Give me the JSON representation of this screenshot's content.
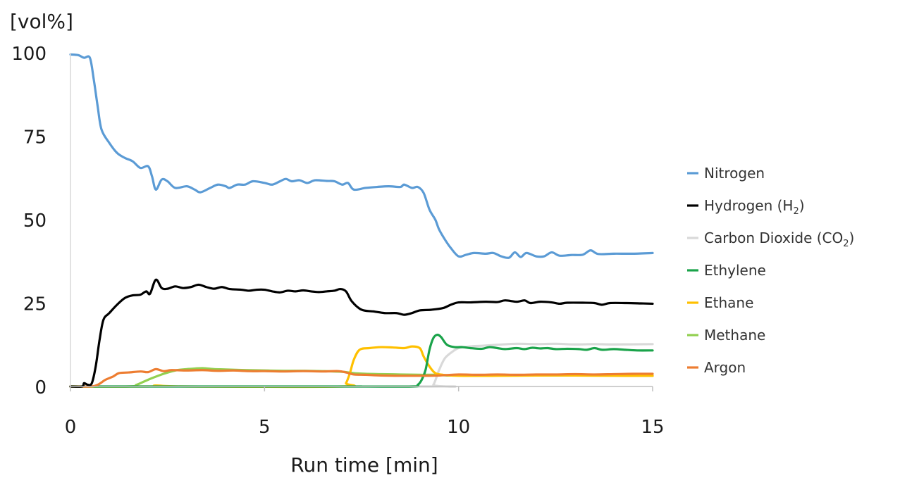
{
  "chart_data": {
    "type": "line",
    "ylabel": "[vol%]",
    "xlabel": "Run time  [min]",
    "xlim": [
      0,
      15
    ],
    "ylim": [
      0,
      100
    ],
    "xticks": [
      "0",
      "5",
      "10",
      "15"
    ],
    "yticks": [
      "0",
      "25",
      "50",
      "75",
      "100"
    ],
    "grid": false,
    "legend_position": "right",
    "series": [
      {
        "name": "Nitrogen",
        "color": "#5b9bd5",
        "points": [
          [
            0,
            99.5
          ],
          [
            0.2,
            99.3
          ],
          [
            0.35,
            98.5
          ],
          [
            0.5,
            98.5
          ],
          [
            0.6,
            92
          ],
          [
            0.7,
            84
          ],
          [
            0.8,
            77
          ],
          [
            1.0,
            73
          ],
          [
            1.2,
            70
          ],
          [
            1.4,
            68.5
          ],
          [
            1.6,
            67.5
          ],
          [
            1.8,
            65.5
          ],
          [
            2.0,
            66
          ],
          [
            2.1,
            63
          ],
          [
            2.2,
            59
          ],
          [
            2.35,
            62
          ],
          [
            2.5,
            61.5
          ],
          [
            2.7,
            59.5
          ],
          [
            3.0,
            60
          ],
          [
            3.2,
            59
          ],
          [
            3.35,
            58.2
          ],
          [
            3.6,
            59.5
          ],
          [
            3.8,
            60.5
          ],
          [
            4.0,
            60
          ],
          [
            4.1,
            59.5
          ],
          [
            4.3,
            60.5
          ],
          [
            4.5,
            60.5
          ],
          [
            4.7,
            61.5
          ],
          [
            5.0,
            61
          ],
          [
            5.2,
            60.5
          ],
          [
            5.4,
            61.5
          ],
          [
            5.55,
            62.2
          ],
          [
            5.7,
            61.5
          ],
          [
            5.9,
            61.8
          ],
          [
            6.1,
            61
          ],
          [
            6.3,
            61.8
          ],
          [
            6.6,
            61.6
          ],
          [
            6.8,
            61.5
          ],
          [
            7.0,
            60.5
          ],
          [
            7.15,
            61
          ],
          [
            7.3,
            59
          ],
          [
            7.6,
            59.5
          ],
          [
            7.9,
            59.8
          ],
          [
            8.2,
            60
          ],
          [
            8.5,
            59.8
          ],
          [
            8.6,
            60.5
          ],
          [
            8.8,
            59.5
          ],
          [
            8.95,
            59.8
          ],
          [
            9.1,
            58
          ],
          [
            9.25,
            53
          ],
          [
            9.4,
            50
          ],
          [
            9.5,
            47
          ],
          [
            9.65,
            44
          ],
          [
            9.8,
            41.5
          ],
          [
            10.0,
            39
          ],
          [
            10.2,
            39.5
          ],
          [
            10.4,
            40
          ],
          [
            10.7,
            39.8
          ],
          [
            10.9,
            40
          ],
          [
            11.1,
            39
          ],
          [
            11.3,
            38.6
          ],
          [
            11.45,
            40.2
          ],
          [
            11.6,
            38.8
          ],
          [
            11.75,
            40
          ],
          [
            12.0,
            39
          ],
          [
            12.2,
            39
          ],
          [
            12.4,
            40.2
          ],
          [
            12.6,
            39.2
          ],
          [
            12.9,
            39.4
          ],
          [
            13.2,
            39.5
          ],
          [
            13.4,
            40.8
          ],
          [
            13.6,
            39.7
          ],
          [
            14.0,
            39.8
          ],
          [
            14.5,
            39.8
          ],
          [
            15.0,
            40
          ]
        ]
      },
      {
        "name": "Hydrogen (H",
        "name_sub": "2",
        "name_suffix": ")",
        "color": "#000000",
        "points": [
          [
            0,
            0
          ],
          [
            0.3,
            0
          ],
          [
            0.35,
            1
          ],
          [
            0.45,
            0.5
          ],
          [
            0.55,
            1
          ],
          [
            0.65,
            6
          ],
          [
            0.75,
            14
          ],
          [
            0.85,
            20
          ],
          [
            1.0,
            22
          ],
          [
            1.2,
            24.5
          ],
          [
            1.4,
            26.5
          ],
          [
            1.6,
            27.3
          ],
          [
            1.8,
            27.5
          ],
          [
            1.95,
            28.5
          ],
          [
            2.05,
            27.8
          ],
          [
            2.2,
            32
          ],
          [
            2.35,
            29.5
          ],
          [
            2.5,
            29.3
          ],
          [
            2.7,
            30
          ],
          [
            2.9,
            29.5
          ],
          [
            3.1,
            29.8
          ],
          [
            3.3,
            30.5
          ],
          [
            3.5,
            29.8
          ],
          [
            3.7,
            29.3
          ],
          [
            3.9,
            29.8
          ],
          [
            4.1,
            29.2
          ],
          [
            4.4,
            29
          ],
          [
            4.6,
            28.7
          ],
          [
            4.8,
            29
          ],
          [
            5.0,
            29
          ],
          [
            5.2,
            28.5
          ],
          [
            5.4,
            28.2
          ],
          [
            5.6,
            28.7
          ],
          [
            5.8,
            28.5
          ],
          [
            6.0,
            28.8
          ],
          [
            6.2,
            28.5
          ],
          [
            6.4,
            28.3
          ],
          [
            6.6,
            28.5
          ],
          [
            6.8,
            28.7
          ],
          [
            6.95,
            29.2
          ],
          [
            7.1,
            28.5
          ],
          [
            7.25,
            25.5
          ],
          [
            7.5,
            23
          ],
          [
            7.8,
            22.5
          ],
          [
            8.1,
            22
          ],
          [
            8.4,
            22
          ],
          [
            8.6,
            21.5
          ],
          [
            8.8,
            22
          ],
          [
            9.0,
            22.8
          ],
          [
            9.3,
            23
          ],
          [
            9.6,
            23.5
          ],
          [
            9.8,
            24.5
          ],
          [
            10.0,
            25.2
          ],
          [
            10.3,
            25.2
          ],
          [
            10.7,
            25.4
          ],
          [
            11.0,
            25.3
          ],
          [
            11.2,
            25.8
          ],
          [
            11.5,
            25.4
          ],
          [
            11.7,
            25.8
          ],
          [
            11.85,
            25
          ],
          [
            12.1,
            25.4
          ],
          [
            12.4,
            25.2
          ],
          [
            12.6,
            24.8
          ],
          [
            12.8,
            25.1
          ],
          [
            13.2,
            25.1
          ],
          [
            13.5,
            25
          ],
          [
            13.7,
            24.5
          ],
          [
            13.9,
            25
          ],
          [
            14.3,
            25
          ],
          [
            14.7,
            24.9
          ],
          [
            15.0,
            24.8
          ]
        ]
      },
      {
        "name": "Carbon Dioxide (CO",
        "name_sub": "2",
        "name_suffix": ")",
        "color": "#d9d9d9",
        "points": [
          [
            0,
            0
          ],
          [
            9.2,
            0
          ],
          [
            9.35,
            0.5
          ],
          [
            9.5,
            5
          ],
          [
            9.65,
            8.5
          ],
          [
            9.85,
            10.5
          ],
          [
            10.0,
            11.5
          ],
          [
            10.3,
            12
          ],
          [
            10.6,
            12.2
          ],
          [
            11.0,
            12.5
          ],
          [
            11.5,
            12.8
          ],
          [
            12.0,
            12.7
          ],
          [
            12.5,
            12.8
          ],
          [
            13.0,
            12.6
          ],
          [
            13.5,
            12.7
          ],
          [
            14.0,
            12.6
          ],
          [
            15.0,
            12.7
          ]
        ]
      },
      {
        "name": "Ethylene",
        "color": "#1aa34a",
        "points": [
          [
            0,
            0
          ],
          [
            6.95,
            0
          ],
          [
            7.1,
            0
          ],
          [
            7.25,
            0
          ],
          [
            8.8,
            0
          ],
          [
            8.95,
            0.5
          ],
          [
            9.05,
            2
          ],
          [
            9.15,
            5
          ],
          [
            9.25,
            11
          ],
          [
            9.35,
            14.5
          ],
          [
            9.45,
            15.5
          ],
          [
            9.55,
            14.8
          ],
          [
            9.7,
            12.5
          ],
          [
            9.9,
            11.8
          ],
          [
            10.1,
            11.8
          ],
          [
            10.3,
            11.5
          ],
          [
            10.6,
            11.3
          ],
          [
            10.8,
            11.8
          ],
          [
            11.0,
            11.5
          ],
          [
            11.2,
            11.2
          ],
          [
            11.5,
            11.5
          ],
          [
            11.7,
            11.2
          ],
          [
            11.9,
            11.6
          ],
          [
            12.1,
            11.4
          ],
          [
            12.3,
            11.5
          ],
          [
            12.5,
            11.2
          ],
          [
            12.8,
            11.3
          ],
          [
            13.1,
            11.2
          ],
          [
            13.3,
            11
          ],
          [
            13.5,
            11.5
          ],
          [
            13.7,
            11
          ],
          [
            14.0,
            11.2
          ],
          [
            14.3,
            11
          ],
          [
            14.6,
            10.8
          ],
          [
            15.0,
            10.8
          ]
        ]
      },
      {
        "name": "Ethane",
        "color": "#ffc000",
        "points": [
          [
            0,
            0
          ],
          [
            2.0,
            0
          ],
          [
            2.2,
            0.3
          ],
          [
            3.0,
            0
          ],
          [
            7.0,
            0
          ],
          [
            7.1,
            1
          ],
          [
            7.2,
            4
          ],
          [
            7.3,
            8
          ],
          [
            7.45,
            11
          ],
          [
            7.7,
            11.5
          ],
          [
            8.0,
            11.8
          ],
          [
            8.3,
            11.7
          ],
          [
            8.6,
            11.5
          ],
          [
            8.8,
            12
          ],
          [
            9.0,
            11.5
          ],
          [
            9.1,
            9
          ],
          [
            9.25,
            6
          ],
          [
            9.4,
            4
          ],
          [
            9.6,
            3.5
          ],
          [
            10.0,
            3.2
          ],
          [
            11.0,
            3.2
          ],
          [
            12.0,
            3.3
          ],
          [
            13.0,
            3.3
          ],
          [
            14.0,
            3.2
          ],
          [
            15.0,
            3.2
          ]
        ]
      },
      {
        "name": "Methane",
        "color": "#92d050",
        "points": [
          [
            0,
            0
          ],
          [
            1.5,
            0
          ],
          [
            1.7,
            0.5
          ],
          [
            1.9,
            1.5
          ],
          [
            2.1,
            2.5
          ],
          [
            2.4,
            3.8
          ],
          [
            2.7,
            4.8
          ],
          [
            3.0,
            5.2
          ],
          [
            3.4,
            5.5
          ],
          [
            3.7,
            5.2
          ],
          [
            4.0,
            5.1
          ],
          [
            4.5,
            4.9
          ],
          [
            5.0,
            4.8
          ],
          [
            5.5,
            4.7
          ],
          [
            6.0,
            4.7
          ],
          [
            6.5,
            4.6
          ],
          [
            7.0,
            4.4
          ],
          [
            7.3,
            4
          ],
          [
            7.6,
            3.8
          ],
          [
            8.0,
            3.7
          ],
          [
            8.5,
            3.6
          ],
          [
            9.0,
            3.5
          ],
          [
            9.4,
            3.5
          ],
          [
            9.7,
            3.3
          ],
          [
            10.0,
            3.3
          ],
          [
            11.0,
            3.3
          ],
          [
            12.0,
            3.3
          ],
          [
            13.0,
            3.3
          ],
          [
            14.0,
            3.3
          ],
          [
            15.0,
            3.2
          ]
        ]
      },
      {
        "name": "Argon",
        "color": "#ed7d31",
        "points": [
          [
            0,
            0
          ],
          [
            0.5,
            0
          ],
          [
            0.7,
            0.5
          ],
          [
            0.9,
            2
          ],
          [
            1.1,
            3
          ],
          [
            1.25,
            4
          ],
          [
            1.5,
            4.2
          ],
          [
            1.8,
            4.5
          ],
          [
            2.0,
            4.3
          ],
          [
            2.2,
            5.2
          ],
          [
            2.4,
            4.6
          ],
          [
            2.6,
            4.9
          ],
          [
            3.0,
            4.8
          ],
          [
            3.4,
            4.9
          ],
          [
            3.8,
            4.7
          ],
          [
            4.2,
            4.8
          ],
          [
            4.6,
            4.6
          ],
          [
            5.0,
            4.6
          ],
          [
            5.5,
            4.5
          ],
          [
            6.0,
            4.6
          ],
          [
            6.5,
            4.5
          ],
          [
            6.9,
            4.6
          ],
          [
            7.1,
            4.2
          ],
          [
            7.3,
            3.6
          ],
          [
            7.6,
            3.5
          ],
          [
            8.0,
            3.3
          ],
          [
            8.5,
            3.2
          ],
          [
            9.0,
            3.2
          ],
          [
            9.5,
            3.3
          ],
          [
            10.0,
            3.6
          ],
          [
            10.5,
            3.5
          ],
          [
            11.0,
            3.6
          ],
          [
            11.5,
            3.5
          ],
          [
            12.0,
            3.6
          ],
          [
            12.5,
            3.6
          ],
          [
            13.0,
            3.7
          ],
          [
            13.5,
            3.6
          ],
          [
            14.0,
            3.7
          ],
          [
            14.5,
            3.8
          ],
          [
            15.0,
            3.8
          ]
        ]
      }
    ]
  }
}
